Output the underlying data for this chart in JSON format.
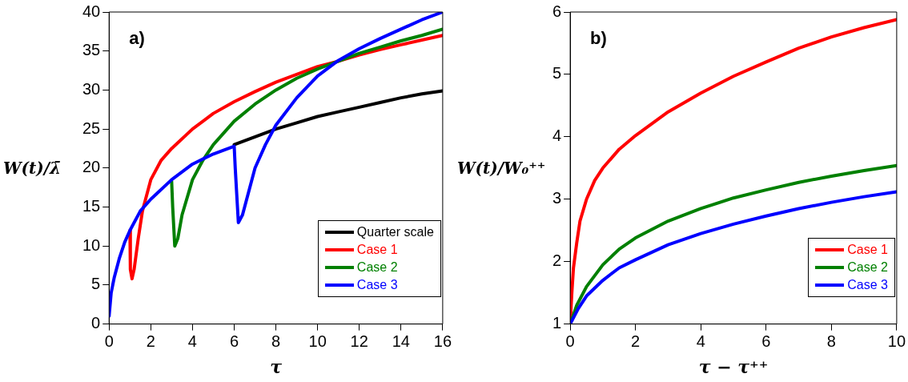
{
  "chart_data": [
    {
      "type": "line",
      "xlabel": "τ",
      "ylabel": "W(t)/λ̄",
      "annotations": [
        "a)"
      ],
      "xlim": [
        0,
        16
      ],
      "ylim": [
        0,
        40
      ],
      "xticks": [
        0,
        2,
        4,
        6,
        8,
        10,
        12,
        14,
        16
      ],
      "yticks": [
        0,
        5,
        10,
        15,
        20,
        25,
        30,
        35,
        40
      ],
      "grid": false,
      "legend": "bottom right",
      "marker": "none",
      "line_style": "solid",
      "series": [
        {
          "name": "Quarter scale",
          "color": "#000000",
          "x": [
            6,
            7,
            8,
            9,
            10,
            11,
            12,
            13,
            14,
            15,
            16
          ],
          "values": [
            23,
            24,
            25,
            25.8,
            26.6,
            27.2,
            27.8,
            28.4,
            29,
            29.5,
            29.9
          ]
        },
        {
          "name": "Case 1",
          "color": "#ff0000",
          "x": [
            1,
            1.02,
            1.1,
            1.2,
            1.4,
            1.6,
            2,
            2.5,
            3,
            4,
            5,
            6,
            7,
            8,
            9,
            10,
            11,
            12,
            13,
            14,
            15,
            16
          ],
          "values": [
            12,
            7,
            5.8,
            7,
            11,
            14.5,
            18.5,
            21,
            22.5,
            25,
            27,
            28.5,
            29.8,
            31,
            32,
            33,
            33.7,
            34.5,
            35.2,
            35.8,
            36.4,
            37
          ]
        },
        {
          "name": "Case 2",
          "color": "#008000",
          "x": [
            3,
            3.05,
            3.15,
            3.3,
            3.5,
            4,
            4.5,
            5,
            6,
            7,
            8,
            9,
            10,
            11,
            12,
            13,
            14,
            15,
            16
          ],
          "values": [
            18.3,
            15,
            10,
            11,
            14,
            18.5,
            21,
            23,
            26,
            28.2,
            30,
            31.5,
            32.7,
            33.7,
            34.7,
            35.5,
            36.3,
            37,
            37.8
          ]
        },
        {
          "name": "Case 3",
          "color": "#0000ff",
          "x": [
            0,
            0.1,
            0.25,
            0.5,
            0.75,
            1,
            1.5,
            2,
            3,
            4,
            5,
            6,
            6.05,
            6.2,
            6.4,
            7,
            7.5,
            8,
            9,
            10,
            11,
            12,
            13,
            14,
            15,
            16
          ],
          "values": [
            1,
            4,
            6,
            8.5,
            10.5,
            12,
            14.5,
            16,
            18.5,
            20.5,
            21.8,
            22.8,
            20,
            13,
            14,
            20,
            23,
            25.5,
            29,
            31.8,
            33.8,
            35.3,
            36.6,
            37.8,
            39,
            40
          ]
        }
      ]
    },
    {
      "type": "line",
      "xlabel": "τ − τ⁺⁺",
      "ylabel": "W(t)/W₀⁺⁺",
      "annotations": [
        "b)"
      ],
      "xlim": [
        0,
        10
      ],
      "ylim": [
        1,
        6
      ],
      "xticks": [
        0,
        2,
        4,
        6,
        8,
        10
      ],
      "yticks": [
        1,
        2,
        3,
        4,
        5,
        6
      ],
      "grid": false,
      "legend": "bottom right",
      "marker": "none",
      "line_style": "solid",
      "series": [
        {
          "name": "Case 1",
          "color": "#ff0000",
          "x": [
            0,
            0.05,
            0.1,
            0.2,
            0.3,
            0.5,
            0.75,
            1,
            1.5,
            2,
            3,
            4,
            5,
            6,
            7,
            8,
            9,
            10
          ],
          "values": [
            1,
            1.5,
            1.9,
            2.3,
            2.65,
            3,
            3.3,
            3.5,
            3.8,
            4.02,
            4.4,
            4.7,
            4.97,
            5.2,
            5.42,
            5.6,
            5.75,
            5.88
          ]
        },
        {
          "name": "Case 2",
          "color": "#008000",
          "x": [
            0,
            0.2,
            0.5,
            1,
            1.5,
            2,
            3,
            4,
            5,
            6,
            7,
            8,
            9,
            10
          ],
          "values": [
            1,
            1.3,
            1.6,
            1.95,
            2.2,
            2.38,
            2.65,
            2.85,
            3.02,
            3.15,
            3.27,
            3.37,
            3.46,
            3.54
          ]
        },
        {
          "name": "Case 3",
          "color": "#0000ff",
          "x": [
            0,
            0.25,
            0.5,
            1,
            1.5,
            2,
            3,
            4,
            5,
            6,
            7,
            8,
            9,
            10
          ],
          "values": [
            1,
            1.25,
            1.45,
            1.7,
            1.9,
            2.03,
            2.27,
            2.45,
            2.6,
            2.73,
            2.85,
            2.95,
            3.04,
            3.12
          ]
        }
      ]
    }
  ]
}
